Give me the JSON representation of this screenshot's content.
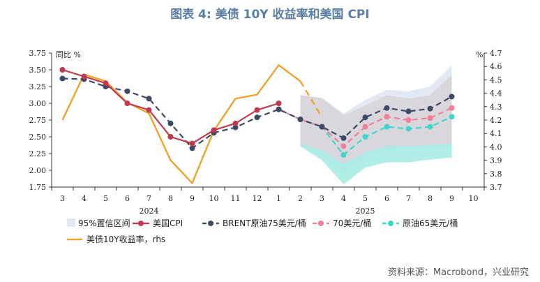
{
  "title": "图表 4:  美债 10Y 收益率和美国 CPI",
  "source": "资料来源：Macrobond，兴业研究",
  "chart_data": {
    "type": "line",
    "left_unit": "同比 %",
    "right_unit": "%",
    "x_ticks": [
      "3",
      "4",
      "5",
      "6",
      "7",
      "8",
      "9",
      "10",
      "11",
      "12",
      "1",
      "2",
      "3",
      "4",
      "5",
      "6",
      "7",
      "8",
      "9",
      "10"
    ],
    "year_labels": [
      {
        "label": "2024",
        "at_index": 4
      },
      {
        "label": "2025",
        "at_index": 14
      }
    ],
    "ylim_left": [
      1.75,
      3.75
    ],
    "ylim_right": [
      3.7,
      4.7
    ],
    "yticks_left": [
      "1.75",
      "2.00",
      "2.25",
      "2.50",
      "2.75",
      "3.00",
      "3.25",
      "3.50",
      "3.75"
    ],
    "yticks_right": [
      "3.7",
      "3.8",
      "3.9",
      "4.0",
      "4.1",
      "4.2",
      "4.3",
      "4.4",
      "4.5",
      "4.6",
      "4.7"
    ],
    "legend": [
      {
        "label": "95%置信区间",
        "kind": "band"
      },
      {
        "label": "美国CPI",
        "kind": "line-dot"
      },
      {
        "label": "BRENT原油75美元/桶",
        "kind": "dash-dot"
      },
      {
        "label": "70美元/桶",
        "kind": "dash-dot"
      },
      {
        "label": "原油65美元/桶",
        "kind": "dash-dot"
      },
      {
        "label": "美债10Y收益率，rhs",
        "kind": "line"
      }
    ],
    "colors": {
      "cpi": "#c0394f",
      "brent75": "#3c4a66",
      "oil70": "#f07f9c",
      "oil65": "#3fd6d0",
      "yield": "#f0a32a",
      "band_grey": "#d6d6dc",
      "band_blue": "#e3e9f4",
      "band_pink": "#f3cad4",
      "band_teal": "#a8ece6"
    },
    "series": {
      "cpi": {
        "x": [
          0,
          1,
          2,
          3,
          4,
          5,
          6,
          7,
          8,
          9,
          10
        ],
        "values": [
          3.5,
          3.4,
          3.3,
          3.0,
          2.9,
          2.5,
          2.4,
          2.6,
          2.7,
          2.9,
          3.0
        ]
      },
      "brent75": {
        "x": [
          0,
          1,
          2,
          3,
          4,
          5,
          6,
          7,
          8,
          9,
          10,
          11,
          12,
          13,
          14,
          15,
          16,
          17,
          18
        ],
        "values": [
          3.37,
          3.36,
          3.25,
          3.18,
          3.07,
          2.7,
          2.33,
          2.56,
          2.64,
          2.79,
          2.91,
          2.76,
          2.65,
          2.48,
          2.79,
          2.93,
          2.88,
          2.92,
          3.1
        ]
      },
      "oil70": {
        "x": [
          10,
          11,
          12,
          13,
          14,
          15,
          16,
          17,
          18
        ],
        "values": [
          2.91,
          2.76,
          2.65,
          2.36,
          2.65,
          2.8,
          2.75,
          2.78,
          2.93
        ]
      },
      "oil65": {
        "x": [
          10,
          11,
          12,
          13,
          14,
          15,
          16,
          17,
          18
        ],
        "values": [
          2.91,
          2.76,
          2.65,
          2.23,
          2.5,
          2.65,
          2.62,
          2.65,
          2.8
        ]
      },
      "yield_rhs": {
        "x": [
          0,
          1,
          2,
          3,
          4,
          5,
          6,
          7,
          8,
          9,
          10,
          11
        ],
        "values": [
          4.2,
          4.54,
          4.49,
          4.33,
          4.25,
          3.9,
          3.73,
          4.12,
          4.36,
          4.39,
          4.61,
          4.49
        ]
      },
      "yield_rhs_forecast": {
        "x": [
          11,
          12
        ],
        "values": [
          4.49,
          4.22
        ]
      }
    },
    "bands": {
      "x": [
        11,
        12,
        13,
        14,
        15,
        16,
        17,
        18
      ],
      "grey": {
        "upper": [
          3.12,
          3.08,
          2.82,
          2.97,
          3.12,
          3.07,
          3.12,
          3.42
        ],
        "lower": [
          2.38,
          2.27,
          2.0,
          2.27,
          2.35,
          2.35,
          2.36,
          2.38
        ]
      },
      "blue": {
        "upper": [
          3.12,
          3.08,
          2.85,
          3.05,
          3.2,
          3.18,
          3.25,
          3.57
        ],
        "lower": [
          2.38,
          2.27,
          2.0,
          2.27,
          2.35,
          2.35,
          2.36,
          2.38
        ]
      },
      "pink": {
        "upper": [
          3.12,
          3.08,
          2.82,
          2.97,
          3.12,
          3.07,
          3.12,
          3.42
        ],
        "lower": [
          2.36,
          2.2,
          1.97,
          2.2,
          2.32,
          2.33,
          2.33,
          2.35
        ]
      },
      "teal": {
        "upper": [
          2.4,
          2.3,
          2.1,
          2.27,
          2.37,
          2.36,
          2.38,
          2.4
        ],
        "lower": [
          2.36,
          2.15,
          1.79,
          2.04,
          2.12,
          2.12,
          2.16,
          2.19
        ]
      }
    }
  }
}
